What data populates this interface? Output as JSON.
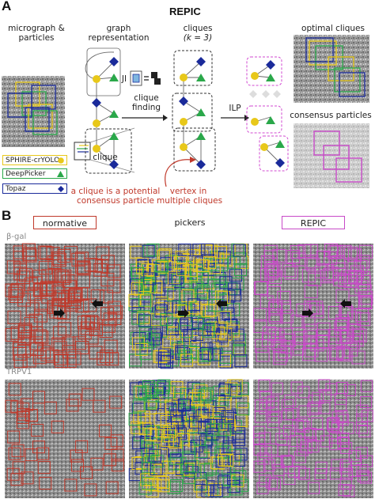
{
  "panelA": {
    "letter": "A",
    "title": "REPIC",
    "col1_title": [
      "micrograph &",
      "particles"
    ],
    "col2_title": [
      "graph",
      "representation"
    ],
    "col3_title": [
      "cliques",
      "(k = 3)"
    ],
    "col4_title": "optimal cliques",
    "col4_sub": "consensus particles",
    "ji_label": "JI",
    "clique_label": "clique",
    "clique_finding": [
      "clique",
      "finding"
    ],
    "ilp_label": "ILP",
    "note_clique": [
      "a clique is a potential",
      "consensus particle"
    ],
    "note_vertex": [
      "vertex in",
      "multiple cliques"
    ],
    "legend": [
      {
        "name": "SPHIRE-crYOLO",
        "color": "#e8c81a",
        "icon": "circle"
      },
      {
        "name": "DeepPicker",
        "color": "#2aa84a",
        "icon": "triangle"
      },
      {
        "name": "Topaz",
        "color": "#1a2a9a",
        "icon": "diamond"
      }
    ]
  },
  "panelB": {
    "letter": "B",
    "headers": [
      {
        "label": "normative",
        "border": "#c0392b"
      },
      {
        "label": "pickers",
        "border": "none"
      },
      {
        "label": "REPIC",
        "border": "#c84ac8"
      }
    ],
    "row_labels": [
      "β-gal",
      "TRPV1"
    ]
  },
  "colors": {
    "crYOLO": "#e8c81a",
    "DeepPicker": "#2aa84a",
    "Topaz": "#1a2a9a",
    "normative": "#c0392b",
    "REPIC": "#c84ac8",
    "ilp_dash": "#d24ad2"
  }
}
